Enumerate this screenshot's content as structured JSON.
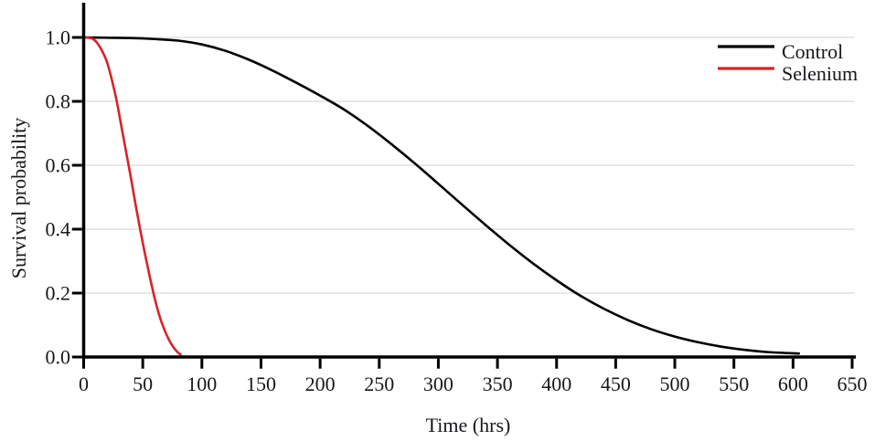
{
  "figure": {
    "background": "#ffffff",
    "text_color": "#17171c",
    "axis_color": "#000000",
    "grid_color": "#e8e8e8"
  },
  "chart_data": {
    "type": "line",
    "title": "",
    "xlabel": "Time (hrs)",
    "ylabel": "Survival probability",
    "xlim": [
      0,
      650
    ],
    "ylim": [
      0.0,
      1.0
    ],
    "x_ticks": [
      0,
      50,
      100,
      150,
      200,
      250,
      300,
      350,
      400,
      450,
      500,
      550,
      600,
      650
    ],
    "y_ticks": [
      0.0,
      0.2,
      0.4,
      0.6,
      0.8,
      1.0
    ],
    "y_tick_labels": [
      "0.0",
      "0.2",
      "0.4",
      "0.6",
      "0.8",
      "1.0"
    ],
    "grid": {
      "horizontal": true,
      "at": [
        0.2,
        0.4,
        0.6,
        0.8,
        1.0
      ],
      "color": "#e8e8e8"
    },
    "legend": {
      "position": "top-right",
      "entries": [
        "Control",
        "Selenium"
      ]
    },
    "series": [
      {
        "name": "Control",
        "color": "#000000",
        "line_width": 2.6,
        "x": [
          0,
          20,
          40,
          60,
          80,
          100,
          120,
          140,
          160,
          180,
          200,
          220,
          240,
          260,
          280,
          300,
          320,
          340,
          360,
          380,
          400,
          420,
          440,
          460,
          480,
          500,
          520,
          540,
          560,
          580,
          605
        ],
        "y": [
          1.0,
          0.999,
          0.998,
          0.995,
          0.99,
          0.978,
          0.958,
          0.93,
          0.896,
          0.858,
          0.818,
          0.775,
          0.724,
          0.667,
          0.606,
          0.542,
          0.477,
          0.413,
          0.351,
          0.293,
          0.24,
          0.192,
          0.151,
          0.116,
          0.087,
          0.064,
          0.046,
          0.032,
          0.022,
          0.015,
          0.011
        ]
      },
      {
        "name": "Selenium",
        "color": "#d8232a",
        "line_width": 2.6,
        "x": [
          0,
          4,
          8,
          12,
          16,
          20,
          24,
          28,
          32,
          36,
          40,
          44,
          48,
          52,
          56,
          60,
          64,
          68,
          72,
          76,
          80,
          82
        ],
        "y": [
          1.0,
          0.999,
          0.995,
          0.98,
          0.955,
          0.92,
          0.865,
          0.8,
          0.72,
          0.64,
          0.56,
          0.475,
          0.395,
          0.32,
          0.25,
          0.185,
          0.13,
          0.088,
          0.055,
          0.03,
          0.013,
          0.008
        ]
      }
    ]
  }
}
